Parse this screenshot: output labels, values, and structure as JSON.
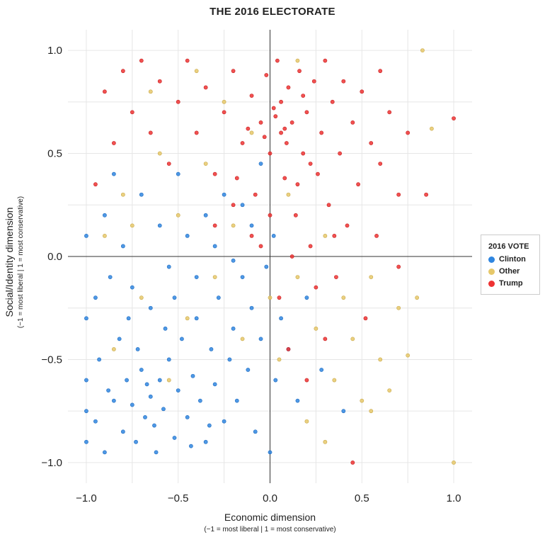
{
  "chart_data": {
    "type": "scatter",
    "title": "THE 2016 ELECTORATE",
    "xlabel": "Economic dimension",
    "xlabel_sub": "(−1 = most liberal | 1 = most conservative)",
    "ylabel": "Social/Identity dimension",
    "ylabel_sub": "(−1 = most liberal | 1 = most conservative)",
    "xlim": [
      -1.1,
      1.1
    ],
    "ylim": [
      -1.1,
      1.1
    ],
    "xticks": [
      -1.0,
      -0.5,
      0.0,
      0.5,
      1.0
    ],
    "xtick_labels": [
      "−1.0",
      "−0.5",
      "0.0",
      "0.5",
      "1.0"
    ],
    "yticks": [
      1.0,
      0.5,
      0.0,
      -0.5,
      -1.0
    ],
    "ytick_labels": [
      "1.0",
      "0.5",
      "0.0",
      "−0.5",
      "−1.0"
    ],
    "grid": true,
    "grid_step": 0.25,
    "zero_lines": true,
    "legend": {
      "title": "2016 VOTE",
      "placement": "right"
    },
    "series": [
      {
        "name": "Clinton",
        "color": "#2f86e0",
        "points": [
          [
            -1,
            -0.9
          ],
          [
            -1,
            -0.6
          ],
          [
            -1,
            -0.3
          ],
          [
            -1,
            0.1
          ],
          [
            -1,
            -0.75
          ],
          [
            -0.95,
            -0.8
          ],
          [
            -0.93,
            -0.5
          ],
          [
            -0.9,
            -0.95
          ],
          [
            -0.88,
            -0.65
          ],
          [
            -0.85,
            -0.7
          ],
          [
            -0.82,
            -0.4
          ],
          [
            -0.8,
            -0.85
          ],
          [
            -0.78,
            -0.6
          ],
          [
            -0.75,
            -0.72
          ],
          [
            -0.73,
            -0.9
          ],
          [
            -0.7,
            -0.55
          ],
          [
            -0.68,
            -0.78
          ],
          [
            -0.65,
            -0.68
          ],
          [
            -0.63,
            -0.82
          ],
          [
            -0.6,
            -0.6
          ],
          [
            -0.58,
            -0.74
          ],
          [
            -0.55,
            -0.5
          ],
          [
            -0.52,
            -0.88
          ],
          [
            -0.5,
            -0.65
          ],
          [
            -0.48,
            -0.4
          ],
          [
            -0.45,
            -0.78
          ],
          [
            -0.42,
            -0.58
          ],
          [
            -0.4,
            -0.3
          ],
          [
            -0.38,
            -0.7
          ],
          [
            -0.35,
            -0.9
          ],
          [
            -0.32,
            -0.45
          ],
          [
            -0.3,
            -0.62
          ],
          [
            -0.28,
            -0.2
          ],
          [
            -0.25,
            -0.8
          ],
          [
            -0.22,
            -0.5
          ],
          [
            -0.2,
            -0.35
          ],
          [
            -0.18,
            -0.7
          ],
          [
            -0.15,
            -0.1
          ],
          [
            -0.12,
            -0.55
          ],
          [
            -0.1,
            -0.25
          ],
          [
            -0.08,
            -0.85
          ],
          [
            -0.05,
            -0.4
          ],
          [
            -0.02,
            -0.05
          ],
          [
            0,
            -0.95
          ],
          [
            0.03,
            -0.6
          ],
          [
            0.06,
            -0.3
          ],
          [
            0.1,
            -0.45
          ],
          [
            0.15,
            -0.7
          ],
          [
            0.2,
            -0.2
          ],
          [
            0.28,
            -0.55
          ],
          [
            0.4,
            -0.75
          ],
          [
            -0.9,
            0.2
          ],
          [
            -0.85,
            0.4
          ],
          [
            -0.8,
            0.05
          ],
          [
            -0.75,
            -0.15
          ],
          [
            -0.7,
            0.3
          ],
          [
            -0.65,
            -0.25
          ],
          [
            -0.6,
            0.15
          ],
          [
            -0.55,
            -0.05
          ],
          [
            -0.5,
            0.4
          ],
          [
            -0.45,
            0.1
          ],
          [
            -0.4,
            -0.1
          ],
          [
            -0.35,
            0.2
          ],
          [
            -0.3,
            0.05
          ],
          [
            -0.25,
            0.3
          ],
          [
            -0.2,
            -0.02
          ],
          [
            -0.15,
            0.25
          ],
          [
            -0.1,
            0.15
          ],
          [
            -0.05,
            0.45
          ],
          [
            0.02,
            0.1
          ],
          [
            -0.95,
            -0.2
          ],
          [
            -0.72,
            -0.45
          ],
          [
            -0.62,
            -0.95
          ],
          [
            -0.57,
            -0.35
          ],
          [
            -0.67,
            -0.62
          ],
          [
            -0.77,
            -0.3
          ],
          [
            -0.87,
            -0.1
          ],
          [
            -0.52,
            -0.2
          ],
          [
            -0.43,
            -0.92
          ],
          [
            -0.33,
            -0.82
          ]
        ]
      },
      {
        "name": "Other",
        "color": "#e6c86a",
        "points": [
          [
            -0.9,
            0.1
          ],
          [
            -0.8,
            0.3
          ],
          [
            -0.7,
            -0.2
          ],
          [
            -0.6,
            0.5
          ],
          [
            -0.5,
            0.2
          ],
          [
            -0.45,
            -0.3
          ],
          [
            -0.35,
            0.45
          ],
          [
            -0.3,
            -0.1
          ],
          [
            -0.2,
            0.15
          ],
          [
            -0.15,
            -0.4
          ],
          [
            -0.1,
            0.6
          ],
          [
            0,
            -0.2
          ],
          [
            0.05,
            -0.5
          ],
          [
            0.1,
            0.3
          ],
          [
            0.15,
            -0.1
          ],
          [
            0.2,
            -0.8
          ],
          [
            0.25,
            -0.35
          ],
          [
            0.3,
            0.1
          ],
          [
            0.35,
            -0.6
          ],
          [
            0.4,
            -0.2
          ],
          [
            0.45,
            -0.4
          ],
          [
            0.5,
            -0.7
          ],
          [
            0.55,
            -0.1
          ],
          [
            0.6,
            -0.5
          ],
          [
            0.7,
            -0.25
          ],
          [
            0.75,
            -0.48
          ],
          [
            0.8,
            -0.2
          ],
          [
            0.83,
            1
          ],
          [
            0.88,
            0.62
          ],
          [
            1,
            -1
          ],
          [
            -0.25,
            0.75
          ],
          [
            -0.55,
            -0.6
          ],
          [
            -0.65,
            0.8
          ],
          [
            -0.4,
            0.9
          ],
          [
            0.15,
            0.95
          ],
          [
            0.3,
            -0.9
          ],
          [
            -0.75,
            0.15
          ],
          [
            -0.85,
            -0.45
          ],
          [
            0.55,
            -0.75
          ],
          [
            0.65,
            -0.65
          ]
        ]
      },
      {
        "name": "Trump",
        "color": "#ee3333",
        "points": [
          [
            -0.9,
            0.8
          ],
          [
            -0.85,
            0.55
          ],
          [
            -0.8,
            0.9
          ],
          [
            -0.75,
            0.7
          ],
          [
            -0.7,
            0.95
          ],
          [
            -0.65,
            0.6
          ],
          [
            -0.6,
            0.85
          ],
          [
            -0.55,
            0.45
          ],
          [
            -0.5,
            0.75
          ],
          [
            -0.45,
            0.95
          ],
          [
            -0.4,
            0.6
          ],
          [
            -0.35,
            0.82
          ],
          [
            -0.3,
            0.4
          ],
          [
            -0.25,
            0.7
          ],
          [
            -0.2,
            0.9
          ],
          [
            -0.15,
            0.55
          ],
          [
            -0.1,
            0.78
          ],
          [
            -0.08,
            0.3
          ],
          [
            -0.05,
            0.65
          ],
          [
            -0.02,
            0.88
          ],
          [
            0,
            0.5
          ],
          [
            0.02,
            0.72
          ],
          [
            0.04,
            0.95
          ],
          [
            0.06,
            0.6
          ],
          [
            0.08,
            0.38
          ],
          [
            0.1,
            0.82
          ],
          [
            0.12,
            0.65
          ],
          [
            0.14,
            0.2
          ],
          [
            0.16,
            0.9
          ],
          [
            0.18,
            0.5
          ],
          [
            0.2,
            0.7
          ],
          [
            0.22,
            0.05
          ],
          [
            0.24,
            0.85
          ],
          [
            0.26,
            0.4
          ],
          [
            0.28,
            0.6
          ],
          [
            0.3,
            0.95
          ],
          [
            0.32,
            0.25
          ],
          [
            0.34,
            0.75
          ],
          [
            0.36,
            -0.1
          ],
          [
            0.38,
            0.5
          ],
          [
            0.4,
            0.85
          ],
          [
            0.42,
            0.15
          ],
          [
            0.45,
            0.65
          ],
          [
            0.48,
            0.35
          ],
          [
            0.5,
            0.8
          ],
          [
            0.52,
            -0.3
          ],
          [
            0.55,
            0.55
          ],
          [
            0.58,
            0.1
          ],
          [
            0.6,
            0.45
          ],
          [
            0.65,
            0.7
          ],
          [
            0.7,
            0.3
          ],
          [
            0.75,
            0.6
          ],
          [
            0.85,
            0.3
          ],
          [
            1,
            0.67
          ],
          [
            0.05,
            -0.2
          ],
          [
            0.1,
            -0.45
          ],
          [
            0.2,
            -0.6
          ],
          [
            0.3,
            -0.4
          ],
          [
            0.45,
            -1
          ],
          [
            -0.1,
            0.1
          ],
          [
            -0.2,
            0.25
          ],
          [
            0,
            0.2
          ],
          [
            0.15,
            0.35
          ],
          [
            -0.3,
            0.15
          ],
          [
            0.25,
            -0.15
          ],
          [
            0.12,
            0
          ],
          [
            -0.05,
            0.05
          ],
          [
            0.35,
            0.1
          ],
          [
            0.08,
            0.62
          ],
          [
            0.03,
            0.68
          ],
          [
            -0.03,
            0.58
          ],
          [
            0.06,
            0.75
          ],
          [
            0.09,
            0.55
          ],
          [
            -0.12,
            0.62
          ],
          [
            0.18,
            0.78
          ],
          [
            0.22,
            0.45
          ],
          [
            -0.18,
            0.38
          ],
          [
            -0.95,
            0.35
          ],
          [
            0.6,
            0.9
          ],
          [
            0.7,
            -0.05
          ]
        ]
      }
    ]
  }
}
